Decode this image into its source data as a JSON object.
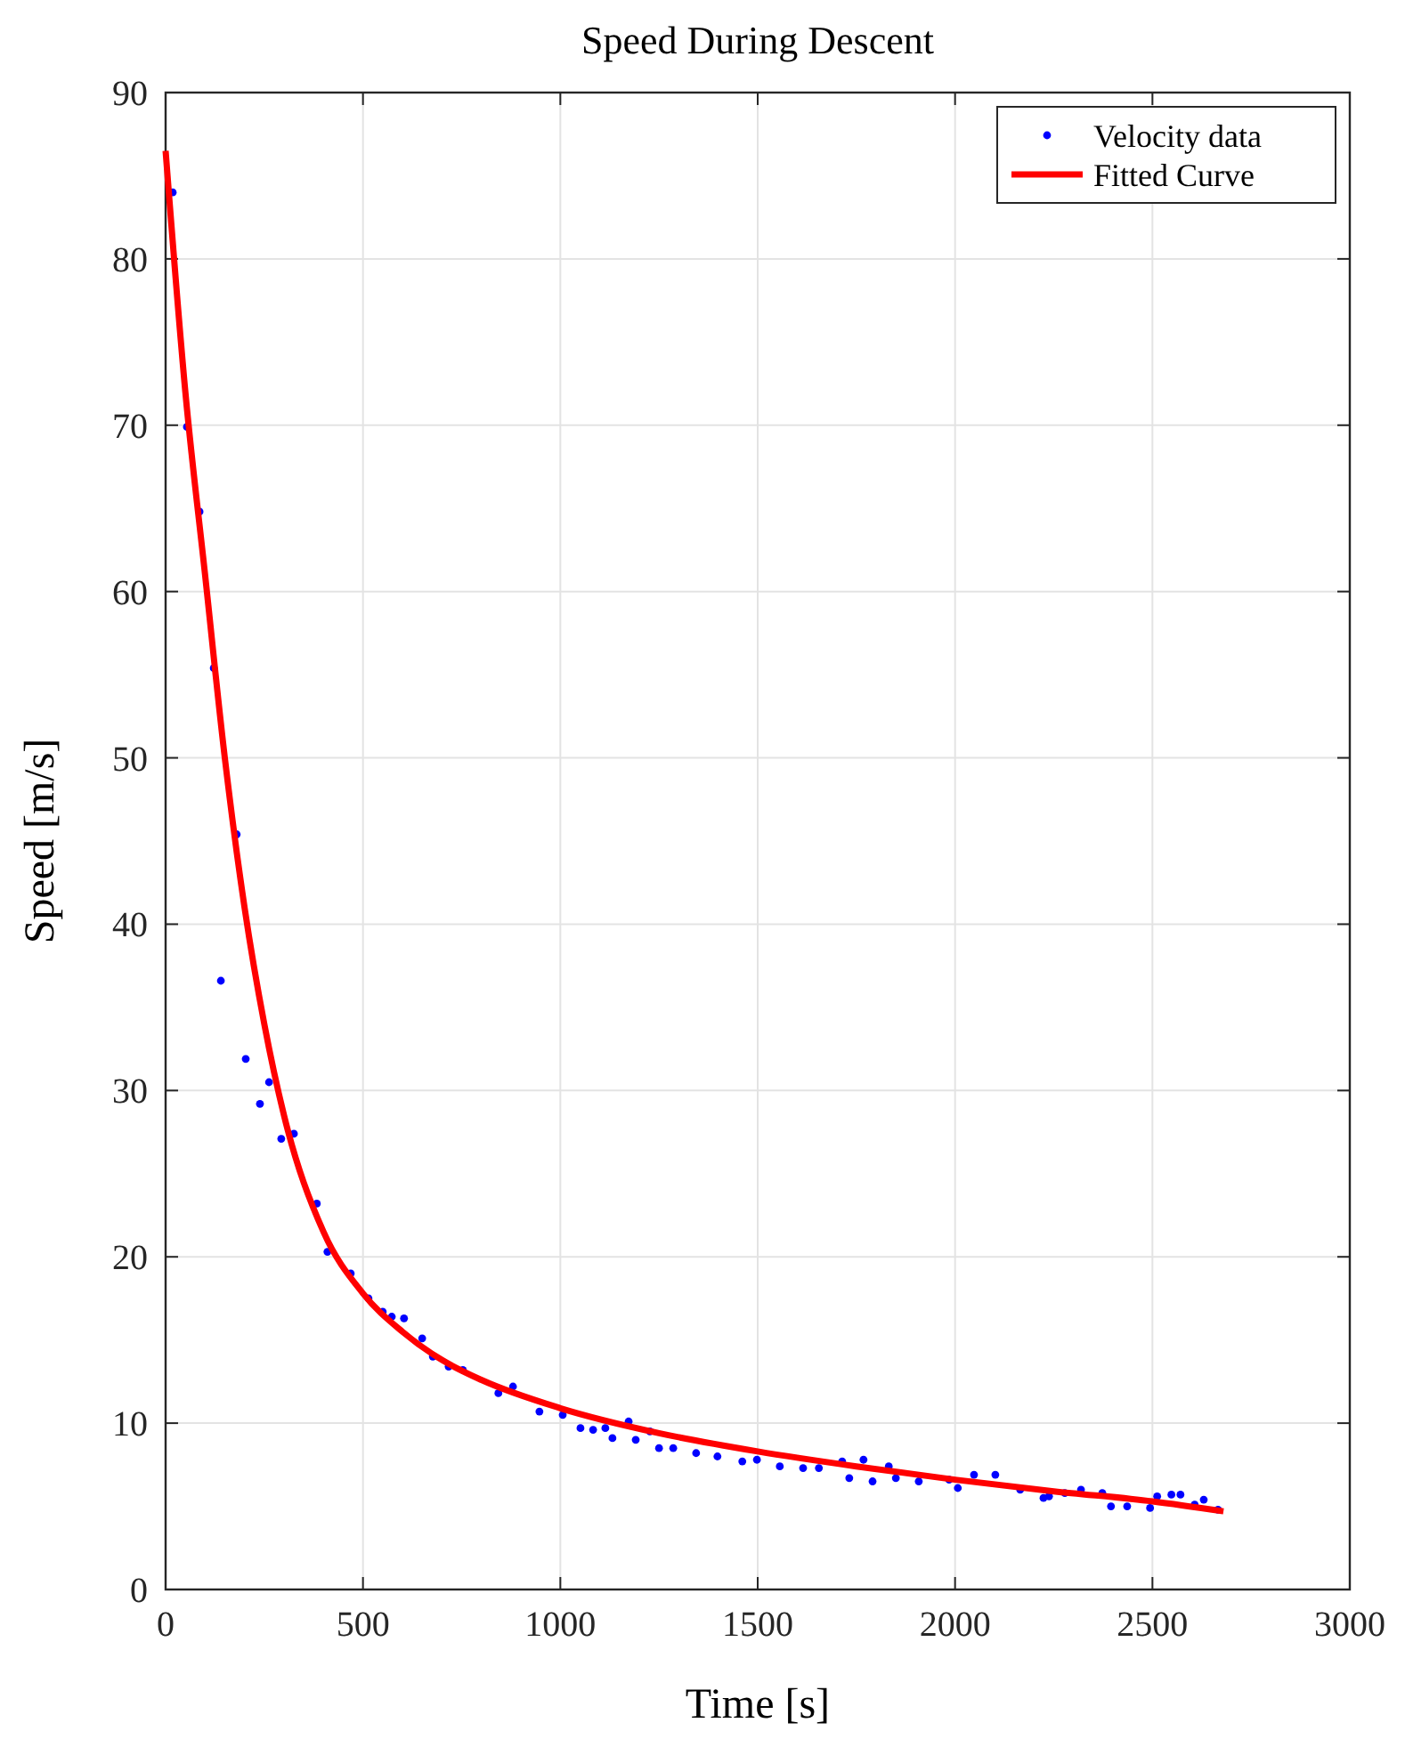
{
  "chart_data": {
    "type": "scatter",
    "title": "Speed During Descent",
    "xlabel": "Time [s]",
    "ylabel": "Speed [m/s]",
    "xlim": [
      0,
      3000
    ],
    "xticks": [
      0,
      500,
      1000,
      1500,
      2000,
      2500,
      3000
    ],
    "ylim": [
      0,
      90
    ],
    "yticks": [
      0,
      10,
      20,
      30,
      40,
      50,
      60,
      70,
      80,
      90
    ],
    "grid": true,
    "legend": "top right",
    "series": [
      {
        "name": "Velocity data",
        "color": "#0000ff",
        "marker": "circle",
        "x": [
          18,
          54,
          86,
          122,
          140,
          180,
          203,
          239,
          262,
          293,
          325,
          383,
          410,
          469,
          514,
          550,
          573,
          604,
          650,
          677,
          717,
          753,
          843,
          880,
          947,
          1006,
          1051,
          1083,
          1114,
          1132,
          1173,
          1191,
          1227,
          1250,
          1286,
          1344,
          1398,
          1461,
          1498,
          1556,
          1615,
          1655,
          1714,
          1732,
          1768,
          1791,
          1832,
          1850,
          1908,
          1985,
          2007,
          2048,
          2102,
          2165,
          2224,
          2238,
          2278,
          2319,
          2373,
          2395,
          2436,
          2494,
          2512,
          2548,
          2571,
          2607,
          2630,
          2666
        ],
        "values": [
          84.0,
          69.9,
          64.8,
          55.4,
          36.6,
          45.4,
          31.9,
          29.2,
          30.5,
          27.1,
          27.4,
          23.2,
          20.3,
          19.0,
          17.5,
          16.7,
          16.4,
          16.3,
          15.1,
          14.0,
          13.4,
          13.2,
          11.8,
          12.2,
          10.7,
          10.5,
          9.7,
          9.6,
          9.7,
          9.1,
          10.1,
          9.0,
          9.5,
          8.5,
          8.5,
          8.2,
          8.0,
          7.7,
          7.8,
          7.4,
          7.3,
          7.3,
          7.7,
          6.7,
          7.8,
          6.5,
          7.4,
          6.7,
          6.5,
          6.6,
          6.1,
          6.9,
          6.9,
          6.0,
          5.5,
          5.6,
          5.8,
          6.0,
          5.8,
          5.0,
          5.0,
          4.9,
          5.6,
          5.7,
          5.7,
          5.1,
          5.4,
          4.8
        ]
      },
      {
        "name": "Fitted Curve",
        "type": "line",
        "color": "#ff0000",
        "line_style": "solid",
        "x": [
          0,
          50,
          100,
          150,
          200,
          250,
          300,
          400,
          500,
          600,
          700,
          800,
          1000,
          1250,
          1500,
          1750,
          2000,
          2250,
          2500,
          2680
        ],
        "values": [
          86.5,
          72,
          61,
          50,
          41,
          34,
          28.5,
          21.5,
          17.8,
          15.5,
          13.8,
          12.6,
          10.9,
          9.4,
          8.3,
          7.4,
          6.6,
          5.9,
          5.3,
          4.7
        ]
      }
    ]
  }
}
